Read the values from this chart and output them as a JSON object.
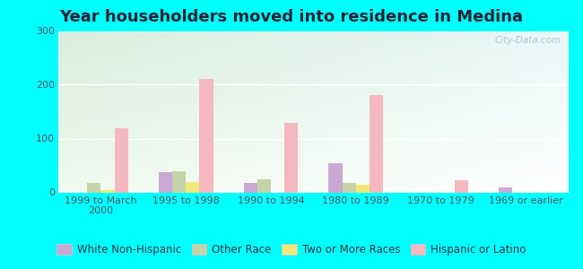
{
  "title": "Year householders moved into residence in Medina",
  "categories": [
    "1999 to March\n2000",
    "1995 to 1998",
    "1990 to 1994",
    "1980 to 1989",
    "1970 to 1979",
    "1969 or earlier"
  ],
  "series": {
    "White Non-Hispanic": [
      0,
      37,
      17,
      55,
      0,
      9
    ],
    "Other Race": [
      17,
      40,
      25,
      18,
      0,
      0
    ],
    "Two or More Races": [
      5,
      20,
      0,
      15,
      0,
      0
    ],
    "Hispanic or Latino": [
      120,
      210,
      130,
      180,
      22,
      0
    ]
  },
  "colors": {
    "White Non-Hispanic": "#c9a8d4",
    "Other Race": "#c5d4a8",
    "Two or More Races": "#f0e87a",
    "Hispanic or Latino": "#f4b8be"
  },
  "ylim": [
    0,
    300
  ],
  "yticks": [
    0,
    100,
    200,
    300
  ],
  "bg_color_tl": "#d8eedd",
  "bg_color_tr": "#e8f8f8",
  "bg_color_bl": "#f0faf0",
  "bg_color_br": "#ffffff",
  "outer_bg": "#00ffff",
  "watermark": "City-Data.com",
  "title_fontsize": 13,
  "tick_fontsize": 8,
  "legend_fontsize": 8.5
}
